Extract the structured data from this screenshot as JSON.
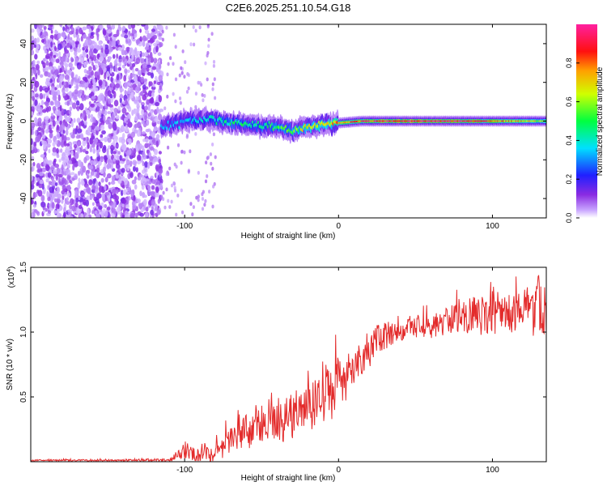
{
  "figure_title": "C2E6.2025.251.10.54.G18",
  "colors": {
    "snr_line": "#e32b2b",
    "frame": "#000000",
    "background": "#ffffff"
  },
  "chart_data": [
    {
      "type": "heatmap",
      "title": "C2E6.2025.251.10.54.G18",
      "xlabel": "Height of straight line (km)",
      "ylabel": "Frequency (Hz)",
      "xlim": [
        -200,
        135
      ],
      "ylim": [
        -50,
        50
      ],
      "xticks": [
        -100,
        0,
        100
      ],
      "xtick_labels": [
        "-100",
        "0",
        "100"
      ],
      "yticks": [
        -40,
        -20,
        0,
        20,
        40
      ],
      "ytick_labels": [
        "-40",
        "-20",
        "0",
        "20",
        "40"
      ],
      "colorbar": {
        "label": "Normalized spectral amplitude",
        "range": [
          0,
          1
        ],
        "ticks": [
          0,
          0.2,
          0.4,
          0.6,
          0.8
        ],
        "tick_labels": [
          "0.0",
          "0.2",
          "0.4",
          "0.6",
          "0.8"
        ],
        "colormap": "rainbow (purple → blue → cyan → green → yellow → red → magenta)"
      },
      "description_of_pattern": {
        "noise_region_height_km": [
          -200,
          -115
        ],
        "signal_ridge": [
          {
            "h": -115,
            "f": -3,
            "amp": 0.3
          },
          {
            "h": -100,
            "f": 0,
            "amp": 0.35
          },
          {
            "h": -85,
            "f": 1,
            "amp": 0.4
          },
          {
            "h": -70,
            "f": -1,
            "amp": 0.45
          },
          {
            "h": -55,
            "f": -2,
            "amp": 0.45
          },
          {
            "h": -40,
            "f": -3,
            "amp": 0.5
          },
          {
            "h": -30,
            "f": -5,
            "amp": 0.55
          },
          {
            "h": -20,
            "f": -3,
            "amp": 0.65
          },
          {
            "h": -10,
            "f": -2,
            "amp": 0.7
          },
          {
            "h": 0,
            "f": -1,
            "amp": 0.75
          },
          {
            "h": 15,
            "f": 0,
            "amp": 0.85
          },
          {
            "h": 50,
            "f": 0,
            "amp": 1.0
          },
          {
            "h": 85,
            "f": 0,
            "amp": 0.9
          },
          {
            "h": 110,
            "f": 0,
            "amp": 0.75
          },
          {
            "h": 135,
            "f": 0,
            "amp": 0.6
          }
        ]
      }
    },
    {
      "type": "line",
      "xlabel": "Height of straight line (km)",
      "ylabel": "SNR (10 * v/v)",
      "yscale_label": "(x10^4)",
      "yscale_base": "(x10",
      "yscale_exp": "4",
      "yscale_close": ")",
      "xlim": [
        -200,
        135
      ],
      "ylim": [
        0,
        1.5
      ],
      "xticks": [
        -100,
        0,
        100
      ],
      "xtick_labels": [
        "-100",
        "0",
        "100"
      ],
      "yticks": [
        0.5,
        1.0,
        1.5
      ],
      "ytick_labels": [
        "0.5",
        "1.0",
        "1.5"
      ],
      "series": [
        {
          "name": "SNR",
          "color": "#e32b2b",
          "trend_x": [
            -200,
            -110,
            -100,
            -90,
            -80,
            -70,
            -60,
            -50,
            -40,
            -30,
            -20,
            -10,
            0,
            10,
            20,
            30,
            40,
            60,
            80,
            100,
            120,
            135
          ],
          "trend_y": [
            0.01,
            0.01,
            0.07,
            0.04,
            0.09,
            0.16,
            0.22,
            0.25,
            0.28,
            0.33,
            0.38,
            0.45,
            0.58,
            0.72,
            0.85,
            0.95,
            1.0,
            1.05,
            1.1,
            1.13,
            1.15,
            1.16
          ],
          "noise_amplitude_x": [
            -200,
            -110,
            -100,
            -60,
            -20,
            0,
            10,
            40,
            100,
            135
          ],
          "noise_amplitude_y": [
            0.005,
            0.01,
            0.05,
            0.12,
            0.2,
            0.2,
            0.15,
            0.07,
            0.15,
            0.2
          ]
        }
      ]
    }
  ]
}
